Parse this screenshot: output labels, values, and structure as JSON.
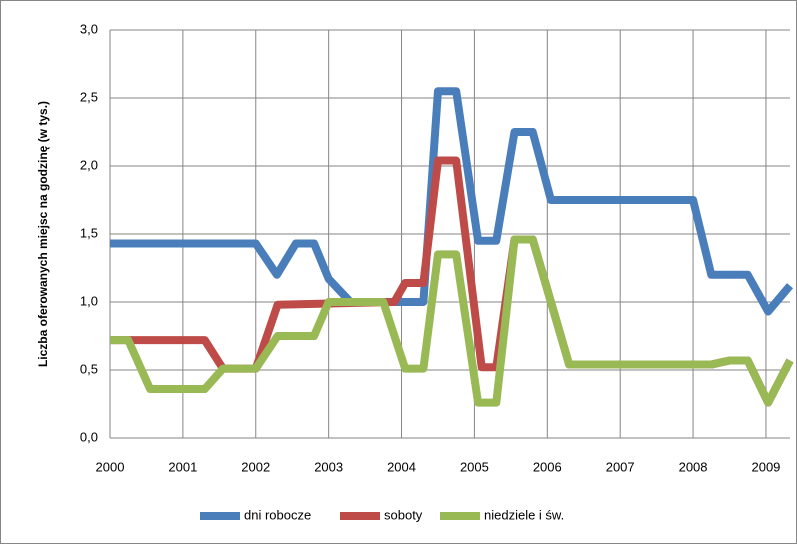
{
  "chart_data": {
    "type": "line",
    "y_label": "Liczba oferowanych miejsc na godzinę (w tys.)",
    "xlim": [
      2000,
      2009.33
    ],
    "xticks": [
      2000,
      2001,
      2002,
      2003,
      2004,
      2005,
      2006,
      2007,
      2008,
      2009
    ],
    "ylim": [
      0,
      3
    ],
    "yticks": [
      {
        "value": 0,
        "label": "0,0"
      },
      {
        "value": 0.5,
        "label": "0,5"
      },
      {
        "value": 1,
        "label": "1,0"
      },
      {
        "value": 1.5,
        "label": "1,5"
      },
      {
        "value": 2,
        "label": "2,0"
      },
      {
        "value": 2.5,
        "label": "2,5"
      },
      {
        "value": 3,
        "label": "3,0"
      }
    ],
    "grid": true,
    "legend": "bottom",
    "series": [
      {
        "name": "dni robocze",
        "color": "#4a7ebb",
        "x": [
          2000,
          2002,
          2002.29,
          2002.55,
          2002.8,
          2003,
          2003.3,
          2004.3,
          2004.5,
          2004.75,
          2005.05,
          2005.3,
          2005.55,
          2005.8,
          2006.05,
          2008,
          2008.25,
          2008.75,
          2009.03,
          2009.33
        ],
        "values": [
          1.43,
          1.43,
          1.2,
          1.43,
          1.43,
          1.17,
          1.0,
          1.0,
          2.55,
          2.55,
          1.45,
          1.45,
          2.25,
          2.25,
          1.75,
          1.75,
          1.2,
          1.2,
          0.93,
          1.12
        ]
      },
      {
        "name": "soboty",
        "color": "#be4b48",
        "x": [
          2000,
          2001.3,
          2001.55,
          2002,
          2002.3,
          2003.9,
          2004.05,
          2004.3,
          2004.5,
          2004.75,
          2005.1,
          2005.3,
          2005.55,
          2005.8,
          2006.05,
          2006.3,
          2008.25,
          2008.5,
          2008.75,
          2009.03,
          2009.33
        ],
        "values": [
          0.72,
          0.72,
          0.51,
          0.51,
          0.98,
          1.0,
          1.14,
          1.14,
          2.04,
          2.04,
          0.52,
          0.52,
          1.46,
          1.46,
          1.0,
          0.54,
          0.54,
          0.57,
          0.57,
          0.26,
          0.57
        ]
      },
      {
        "name": "niedziele i św.",
        "color": "#98b954",
        "x": [
          2000,
          2000.25,
          2000.55,
          2001.3,
          2001.55,
          2002,
          2002.3,
          2002.8,
          2003,
          2003.75,
          2004.05,
          2004.3,
          2004.5,
          2004.75,
          2005.05,
          2005.3,
          2005.55,
          2005.8,
          2006.05,
          2006.3,
          2008.25,
          2008.5,
          2008.75,
          2009.03,
          2009.33
        ],
        "values": [
          0.72,
          0.72,
          0.36,
          0.36,
          0.51,
          0.51,
          0.75,
          0.75,
          1.0,
          1.0,
          0.51,
          0.51,
          1.35,
          1.35,
          0.26,
          0.26,
          1.46,
          1.46,
          1.0,
          0.54,
          0.54,
          0.57,
          0.57,
          0.26,
          0.57
        ]
      }
    ]
  }
}
